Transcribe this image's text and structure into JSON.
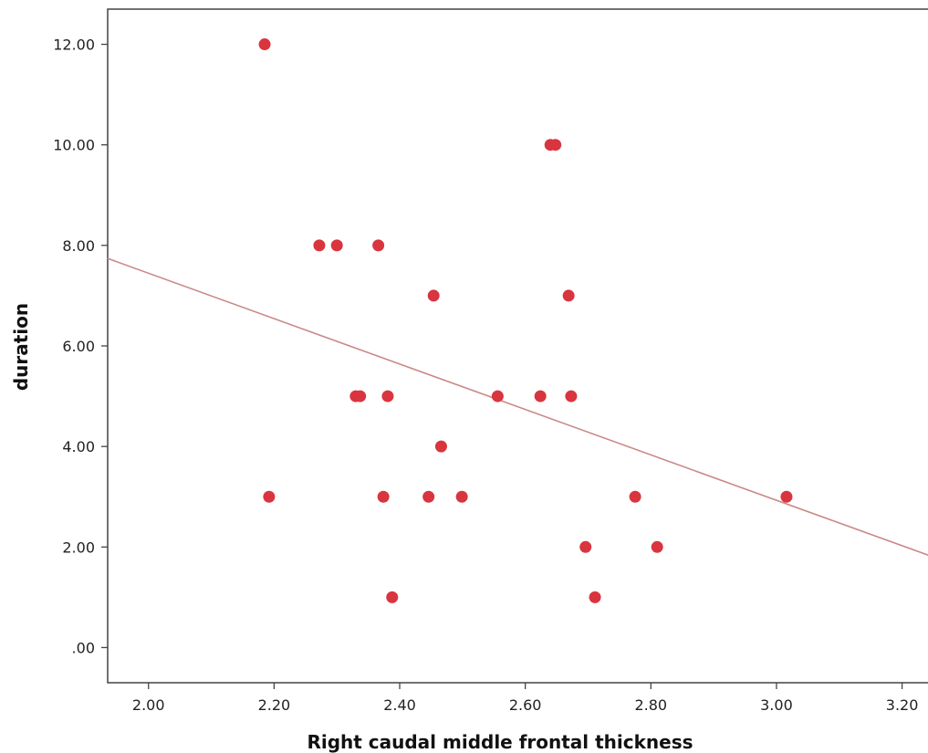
{
  "chart_data": {
    "type": "scatter",
    "xlabel": "Right caudal middle frontal thickness",
    "ylabel": "duration",
    "xlim": [
      1.935,
      3.25
    ],
    "ylim": [
      -0.7,
      12.7
    ],
    "x_ticks": [
      "2.00",
      "2.20",
      "2.40",
      "2.60",
      "2.80",
      "3.00",
      "3.20"
    ],
    "x_tick_values": [
      2.0,
      2.2,
      2.4,
      2.6,
      2.8,
      3.0,
      3.2
    ],
    "y_ticks": [
      ".00",
      "2.00",
      "4.00",
      "6.00",
      "8.00",
      "10.00",
      "12.00"
    ],
    "y_tick_values": [
      0,
      2,
      4,
      6,
      8,
      10,
      12
    ],
    "grid": false,
    "series": [
      {
        "points": [
          [
            2.185,
            12
          ],
          [
            2.192,
            3
          ],
          [
            2.272,
            8
          ],
          [
            2.3,
            8
          ],
          [
            2.366,
            8
          ],
          [
            2.33,
            5
          ],
          [
            2.337,
            5
          ],
          [
            2.381,
            5
          ],
          [
            2.374,
            3
          ],
          [
            2.388,
            1
          ],
          [
            2.446,
            3
          ],
          [
            2.454,
            7
          ],
          [
            2.466,
            4
          ],
          [
            2.499,
            3
          ],
          [
            2.556,
            5
          ],
          [
            2.624,
            5
          ],
          [
            2.64,
            10
          ],
          [
            2.648,
            10
          ],
          [
            2.669,
            7
          ],
          [
            2.673,
            5
          ],
          [
            2.696,
            2
          ],
          [
            2.711,
            1
          ],
          [
            2.775,
            3
          ],
          [
            2.81,
            2
          ],
          [
            3.016,
            3
          ]
        ],
        "color": "#d9353e"
      }
    ],
    "fit_line": {
      "x": [
        1.935,
        3.25
      ],
      "y": [
        7.74,
        1.8
      ],
      "color": "#c98a88"
    },
    "colors": {
      "axis": "#444444",
      "marker": "#d9353e",
      "fit_line": "#c98a88"
    }
  }
}
